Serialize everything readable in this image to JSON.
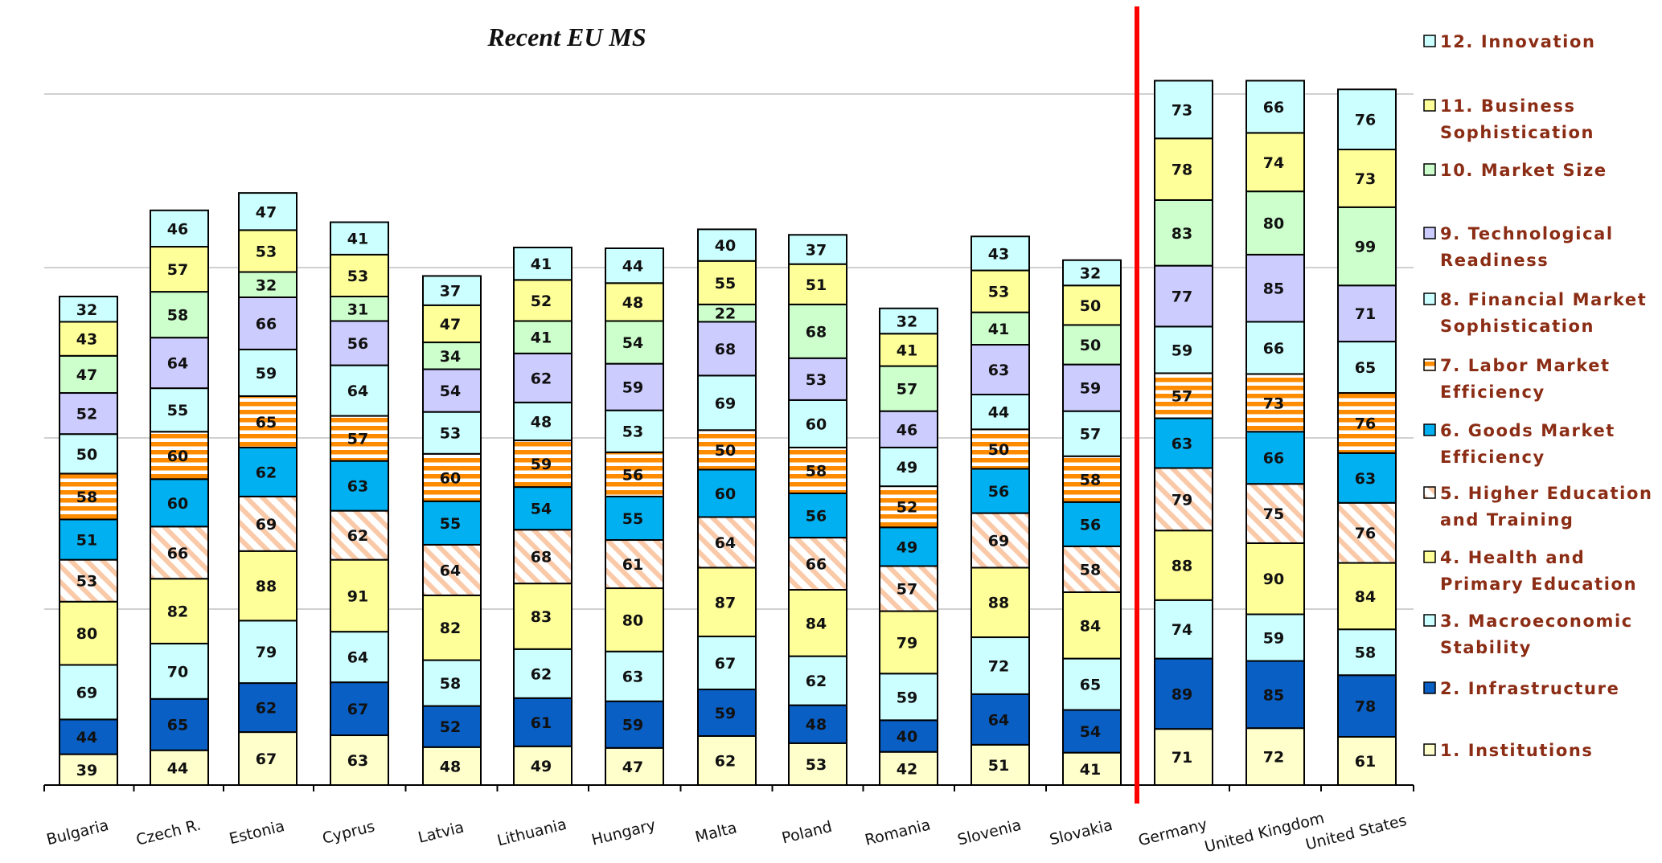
{
  "chart_data": {
    "type": "bar",
    "stacked": true,
    "title": "Recent EU MS",
    "categories": [
      "Bulgaria",
      "Czech R.",
      "Estonia",
      "Cyprus",
      "Latvia",
      "Lithuania",
      "Hungary",
      "Malta",
      "Poland",
      "Romania",
      "Slovenia",
      "Slovakia",
      "Germany",
      "United Kingdom",
      "United States"
    ],
    "separator_after_category": "Slovakia",
    "grid": true,
    "legend_position": "right",
    "series": [
      {
        "name": "1. Institutions",
        "color": "#ffffcc",
        "pattern": "solid",
        "values": [
          39,
          44,
          67,
          63,
          48,
          49,
          47,
          62,
          53,
          42,
          51,
          41,
          71,
          72,
          61
        ]
      },
      {
        "name": "2. Infrastructure",
        "color": "#0a5fc4",
        "pattern": "solid",
        "values": [
          44,
          65,
          62,
          67,
          52,
          61,
          59,
          59,
          48,
          40,
          64,
          54,
          89,
          85,
          78
        ]
      },
      {
        "name": "3. Macroeconomic Stability",
        "color": "#ccffff",
        "pattern": "solid",
        "values": [
          69,
          70,
          79,
          64,
          58,
          62,
          63,
          67,
          62,
          59,
          72,
          65,
          74,
          59,
          58
        ]
      },
      {
        "name": "4. Health and Primary Education",
        "color": "#ffff99",
        "pattern": "solid",
        "values": [
          80,
          82,
          88,
          91,
          82,
          83,
          80,
          87,
          84,
          79,
          88,
          84,
          88,
          90,
          84
        ]
      },
      {
        "name": "5. Higher Education and Training",
        "color": "#ffffff",
        "pattern": "diagonal",
        "values": [
          53,
          66,
          69,
          62,
          64,
          68,
          61,
          64,
          66,
          57,
          69,
          58,
          79,
          75,
          76
        ]
      },
      {
        "name": "6. Goods Market Efficiency",
        "color": "#00b0f0",
        "pattern": "solid",
        "values": [
          51,
          60,
          62,
          63,
          55,
          54,
          55,
          60,
          56,
          49,
          56,
          56,
          63,
          66,
          63
        ]
      },
      {
        "name": "7. Labor Market Efficiency",
        "color": "#ff8c00",
        "pattern": "horizontal",
        "values": [
          58,
          60,
          65,
          57,
          60,
          59,
          56,
          50,
          58,
          52,
          50,
          58,
          57,
          73,
          76
        ]
      },
      {
        "name": "8. Financial Market Sophistication",
        "color": "#ccffff",
        "pattern": "solid",
        "values": [
          50,
          55,
          59,
          64,
          53,
          48,
          53,
          69,
          60,
          49,
          44,
          57,
          59,
          66,
          65
        ]
      },
      {
        "name": "9. Technological Readiness",
        "color": "#ccccff",
        "pattern": "solid",
        "values": [
          52,
          64,
          66,
          56,
          54,
          62,
          59,
          68,
          53,
          46,
          63,
          59,
          77,
          85,
          71
        ]
      },
      {
        "name": "10. Market Size",
        "color": "#ccffcc",
        "pattern": "solid",
        "values": [
          47,
          58,
          32,
          31,
          34,
          41,
          54,
          22,
          68,
          57,
          41,
          50,
          83,
          80,
          99
        ]
      },
      {
        "name": "11. Business Sophistication",
        "color": "#ffff99",
        "pattern": "solid",
        "values": [
          43,
          57,
          53,
          53,
          47,
          52,
          48,
          55,
          51,
          41,
          53,
          50,
          78,
          74,
          73
        ]
      },
      {
        "name": "12. Innovation",
        "color": "#ccffff",
        "pattern": "solid",
        "values": [
          32,
          46,
          47,
          41,
          37,
          41,
          44,
          40,
          37,
          32,
          43,
          32,
          73,
          66,
          76
        ]
      }
    ],
    "legend_lines": [
      [
        "12. Innovation"
      ],
      [
        "11. Business",
        "Sophistication"
      ],
      [
        "10. Market Size"
      ],
      [
        "9. Technological",
        "Readiness"
      ],
      [
        "8. Financial Market",
        "Sophistication"
      ],
      [
        "7. Labor Market",
        "Efficiency"
      ],
      [
        "6. Goods Market",
        "Efficiency"
      ],
      [
        "5. Higher Education",
        "and Training"
      ],
      [
        "4. Health and",
        "Primary Education"
      ],
      [
        "3. Macroeconomic",
        "Stability"
      ],
      [
        "2. Infrastructure"
      ],
      [
        "1. Institutions"
      ]
    ],
    "separator_color": "#ff0000",
    "grid_color": "#c0c0c0",
    "legend_text_color": "#8b2c14"
  }
}
